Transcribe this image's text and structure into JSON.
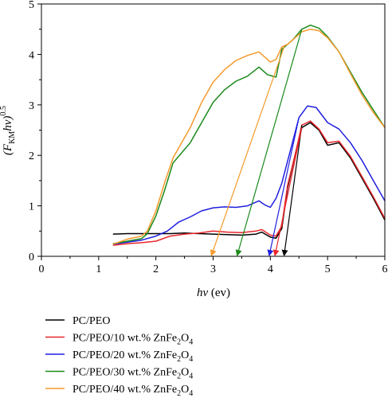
{
  "chart_data": {
    "type": "line",
    "title": "",
    "xlabel_main": "hv",
    "xlabel_unit": " (ev)",
    "ylabel_main": "(F",
    "ylabel_sub": "KM",
    "ylabel_mid": "hv)",
    "ylabel_sup": "0.5",
    "xlim": [
      0,
      6
    ],
    "ylim": [
      0,
      5
    ],
    "xticks": [
      0,
      1,
      2,
      3,
      4,
      5,
      6
    ],
    "yticks": [
      0,
      1,
      2,
      3,
      4,
      5
    ],
    "grid": false,
    "legend_position": "bottom",
    "series": [
      {
        "name": "PC/PEO",
        "name_parts": [
          "PC/PEO"
        ],
        "color": "#000000",
        "x": [
          1.25,
          1.5,
          1.75,
          2.0,
          2.25,
          2.5,
          2.75,
          3.0,
          3.25,
          3.5,
          3.75,
          3.85,
          4.0,
          4.1,
          4.2,
          4.3,
          4.45,
          4.55,
          4.7,
          4.85,
          5.0,
          5.2,
          5.4,
          5.6,
          5.8,
          6.0
        ],
        "y": [
          0.44,
          0.45,
          0.45,
          0.45,
          0.45,
          0.46,
          0.45,
          0.44,
          0.43,
          0.42,
          0.44,
          0.48,
          0.38,
          0.36,
          0.55,
          1.35,
          2.1,
          2.55,
          2.65,
          2.5,
          2.2,
          2.25,
          1.95,
          1.55,
          1.15,
          0.72
        ]
      },
      {
        "name": "PC/PEO/10 wt.% ZnFe2O4",
        "name_parts": [
          "PC/PEO/10 wt.% ZnFe",
          "2",
          "O",
          "4"
        ],
        "color": "#e8262a",
        "x": [
          1.25,
          1.5,
          1.75,
          2.0,
          2.25,
          2.5,
          2.75,
          3.0,
          3.25,
          3.5,
          3.75,
          3.85,
          4.0,
          4.1,
          4.2,
          4.3,
          4.45,
          4.55,
          4.7,
          4.85,
          5.0,
          5.2,
          5.4,
          5.6,
          5.8,
          6.0
        ],
        "y": [
          0.22,
          0.25,
          0.27,
          0.3,
          0.4,
          0.44,
          0.46,
          0.5,
          0.48,
          0.47,
          0.5,
          0.53,
          0.42,
          0.4,
          0.6,
          1.4,
          2.1,
          2.6,
          2.68,
          2.52,
          2.25,
          2.28,
          1.98,
          1.58,
          1.18,
          0.75
        ]
      },
      {
        "name": "PC/PEO/20 wt.% ZnFe2O4",
        "name_parts": [
          "PC/PEO/20 wt.% ZnFe",
          "2",
          "O",
          "4"
        ],
        "color": "#1f1fe0",
        "x": [
          1.25,
          1.5,
          1.75,
          2.0,
          2.2,
          2.4,
          2.6,
          2.8,
          3.0,
          3.2,
          3.4,
          3.6,
          3.8,
          3.9,
          4.0,
          4.1,
          4.2,
          4.35,
          4.5,
          4.65,
          4.8,
          5.0,
          5.2,
          5.4,
          5.6,
          5.8,
          6.0
        ],
        "y": [
          0.24,
          0.28,
          0.32,
          0.4,
          0.5,
          0.68,
          0.78,
          0.9,
          0.96,
          0.98,
          0.97,
          1.0,
          1.1,
          1.02,
          0.97,
          1.15,
          1.45,
          2.1,
          2.75,
          2.98,
          2.95,
          2.65,
          2.52,
          2.25,
          1.9,
          1.5,
          1.1
        ]
      },
      {
        "name": "PC/PEO/30 wt.% ZnFe2O4",
        "name_parts": [
          "PC/PEO/30 wt.% ZnFe",
          "2",
          "O",
          "4"
        ],
        "color": "#1a8a1a",
        "x": [
          1.25,
          1.5,
          1.75,
          1.85,
          2.0,
          2.15,
          2.3,
          2.45,
          2.6,
          2.8,
          3.0,
          3.2,
          3.4,
          3.6,
          3.8,
          3.95,
          4.1,
          4.2,
          4.3,
          4.4,
          4.55,
          4.7,
          4.85,
          5.0,
          5.2,
          5.4,
          5.6,
          5.8,
          6.0
        ],
        "y": [
          0.25,
          0.3,
          0.35,
          0.45,
          0.8,
          1.3,
          1.85,
          2.05,
          2.25,
          2.65,
          3.05,
          3.3,
          3.47,
          3.57,
          3.75,
          3.6,
          3.55,
          4.1,
          4.2,
          4.3,
          4.5,
          4.58,
          4.52,
          4.35,
          4.05,
          3.65,
          3.25,
          2.9,
          2.55
        ]
      },
      {
        "name": "PC/PEO/40 wt.% ZnFe2O4",
        "name_parts": [
          "PC/PEO/40 wt.% ZnFe",
          "2",
          "O",
          "4"
        ],
        "color": "#f59a2c",
        "x": [
          1.25,
          1.5,
          1.75,
          1.85,
          2.0,
          2.15,
          2.3,
          2.45,
          2.6,
          2.8,
          3.0,
          3.2,
          3.4,
          3.6,
          3.8,
          4.0,
          4.1,
          4.2,
          4.3,
          4.4,
          4.55,
          4.7,
          4.85,
          5.0,
          5.2,
          5.4,
          5.6,
          5.8,
          6.0
        ],
        "y": [
          0.24,
          0.34,
          0.4,
          0.5,
          0.9,
          1.45,
          1.95,
          2.25,
          2.55,
          3.05,
          3.45,
          3.7,
          3.88,
          3.98,
          4.05,
          3.85,
          3.9,
          4.15,
          4.2,
          4.3,
          4.45,
          4.5,
          4.47,
          4.33,
          4.05,
          3.62,
          3.2,
          2.85,
          2.55
        ]
      }
    ],
    "extrapolation_arrows": [
      {
        "series": "PC/PEO",
        "color": "#000000",
        "from": [
          4.55,
          2.6
        ],
        "to": [
          4.24,
          0.0
        ]
      },
      {
        "series": "PC/PEO/10 wt.% ZnFe2O4",
        "color": "#e8262a",
        "from": [
          4.55,
          2.55
        ],
        "to": [
          4.08,
          0.0
        ]
      },
      {
        "series": "PC/PEO/20 wt.% ZnFe2O4",
        "color": "#1f1fe0",
        "from": [
          4.5,
          2.75
        ],
        "to": [
          3.98,
          0.0
        ]
      },
      {
        "series": "PC/PEO/30 wt.% ZnFe2O4",
        "color": "#1a8a1a",
        "from": [
          4.55,
          4.5
        ],
        "to": [
          3.42,
          0.0
        ]
      },
      {
        "series": "PC/PEO/40 wt.% ZnFe2O4",
        "color": "#f59a2c",
        "from": [
          4.25,
          4.18
        ],
        "to": [
          2.97,
          0.0
        ]
      }
    ]
  }
}
